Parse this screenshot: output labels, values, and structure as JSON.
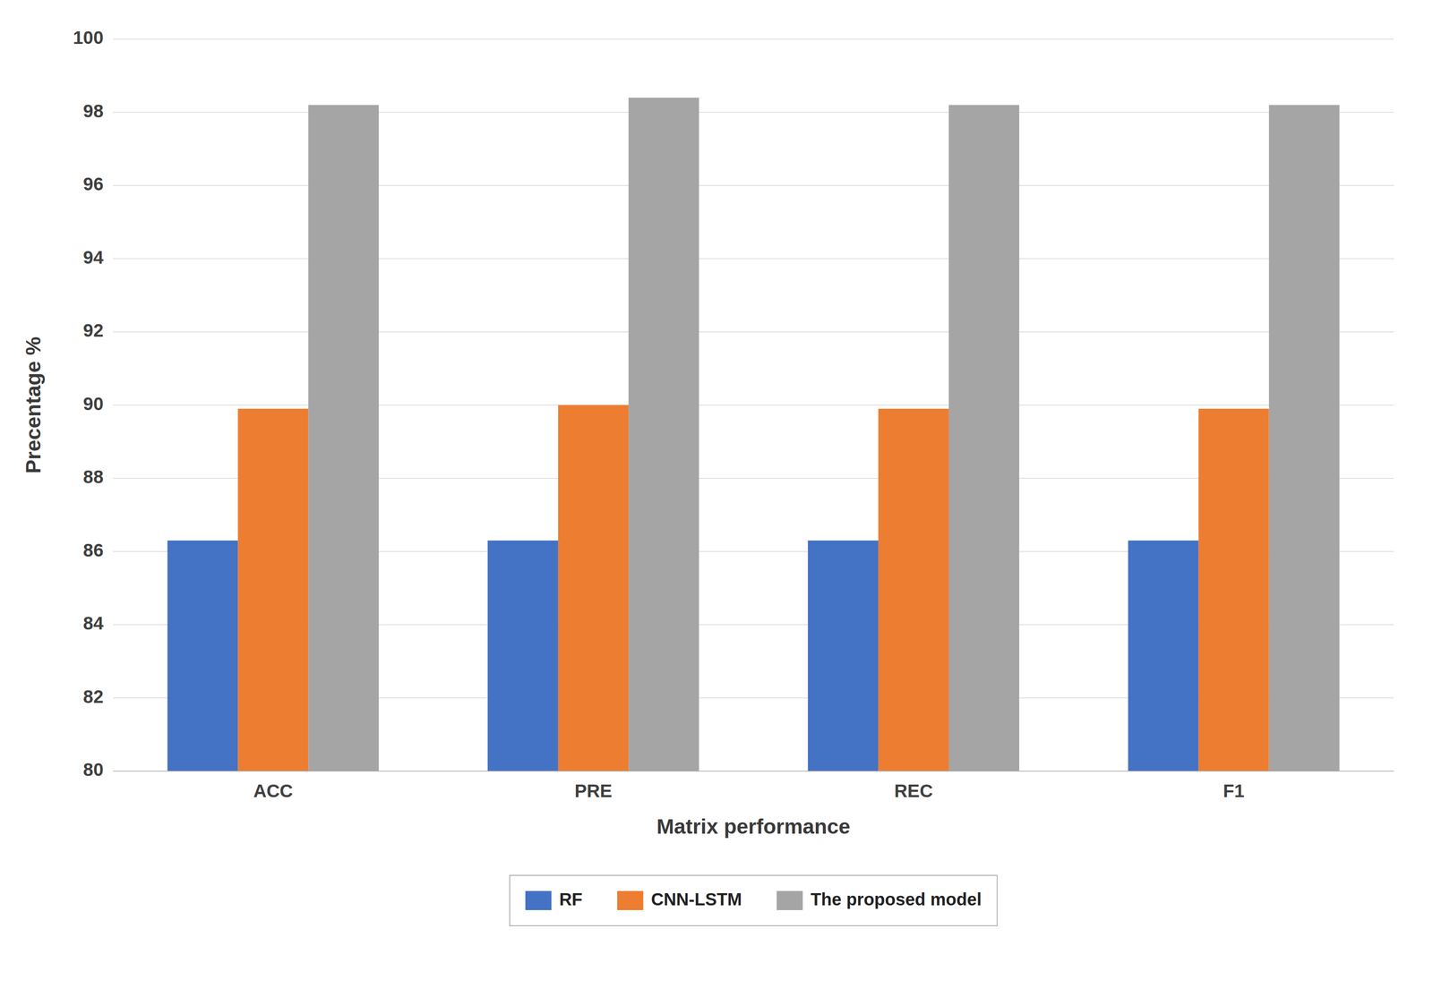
{
  "chart_data": {
    "type": "bar",
    "categories": [
      "ACC",
      "PRE",
      "REC",
      "F1"
    ],
    "series": [
      {
        "name": "RF",
        "color": "#4472C4",
        "values": [
          86.3,
          86.3,
          86.3,
          86.3
        ]
      },
      {
        "name": "CNN-LSTM",
        "color": "#ED7D31",
        "values": [
          89.9,
          90.0,
          89.9,
          89.9
        ]
      },
      {
        "name": "The proposed model",
        "color": "#A5A5A5",
        "values": [
          98.2,
          98.4,
          98.2,
          98.2
        ]
      }
    ],
    "xlabel": "Matrix performance",
    "ylabel": "Precentage %",
    "ylim": [
      80,
      100
    ],
    "yticks": [
      80,
      82,
      84,
      86,
      88,
      90,
      92,
      94,
      96,
      98,
      100
    ],
    "grid": true,
    "legend": "bottom"
  }
}
